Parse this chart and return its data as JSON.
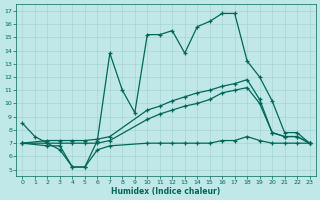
{
  "xlabel": "Humidex (Indice chaleur)",
  "bg_color": "#c0e8e8",
  "grid_color": "#a0d0d0",
  "line_color": "#006858",
  "xlim": [
    -0.5,
    23.5
  ],
  "ylim": [
    4.5,
    17.5
  ],
  "xticks": [
    0,
    1,
    2,
    3,
    4,
    5,
    6,
    7,
    8,
    9,
    10,
    11,
    12,
    13,
    14,
    15,
    16,
    17,
    18,
    19,
    20,
    21,
    22,
    23
  ],
  "yticks": [
    5,
    6,
    7,
    8,
    9,
    10,
    11,
    12,
    13,
    14,
    15,
    16,
    17
  ],
  "line1_x": [
    0,
    1,
    2,
    3,
    4,
    5,
    6,
    7,
    8,
    9,
    10,
    11,
    12,
    13,
    14,
    15,
    16,
    17,
    18,
    19,
    20,
    21,
    22,
    23
  ],
  "line1_y": [
    8.5,
    7.5,
    7.0,
    6.5,
    5.2,
    5.2,
    7.2,
    13.8,
    11.0,
    9.3,
    15.2,
    15.2,
    15.5,
    13.8,
    15.8,
    16.2,
    16.8,
    16.8,
    13.2,
    12.0,
    10.2,
    7.8,
    7.8,
    7.0
  ],
  "line2_x": [
    0,
    2,
    3,
    4,
    5,
    6,
    7,
    10,
    11,
    12,
    13,
    14,
    15,
    16,
    17,
    18,
    19,
    20,
    21,
    22,
    23
  ],
  "line2_y": [
    7.0,
    7.2,
    7.2,
    7.2,
    7.2,
    7.3,
    7.5,
    9.5,
    9.8,
    10.2,
    10.5,
    10.8,
    11.0,
    11.3,
    11.5,
    11.8,
    10.3,
    7.8,
    7.5,
    7.5,
    7.0
  ],
  "line3_x": [
    0,
    2,
    3,
    4,
    5,
    6,
    7,
    10,
    11,
    12,
    13,
    14,
    15,
    16,
    17,
    18,
    19,
    20,
    21,
    22,
    23
  ],
  "line3_y": [
    7.0,
    7.0,
    7.0,
    7.0,
    7.0,
    7.0,
    7.2,
    8.8,
    9.2,
    9.5,
    9.8,
    10.0,
    10.3,
    10.8,
    11.0,
    11.2,
    10.0,
    7.8,
    7.5,
    7.5,
    7.0
  ],
  "line4_x": [
    0,
    2,
    3,
    4,
    5,
    6,
    7,
    10,
    11,
    12,
    13,
    14,
    15,
    16,
    17,
    18,
    19,
    20,
    21,
    22,
    23
  ],
  "line4_y": [
    7.0,
    6.8,
    6.8,
    5.2,
    5.2,
    6.5,
    6.8,
    7.0,
    7.0,
    7.0,
    7.0,
    7.0,
    7.0,
    7.2,
    7.2,
    7.5,
    7.2,
    7.0,
    7.0,
    7.0,
    7.0
  ]
}
